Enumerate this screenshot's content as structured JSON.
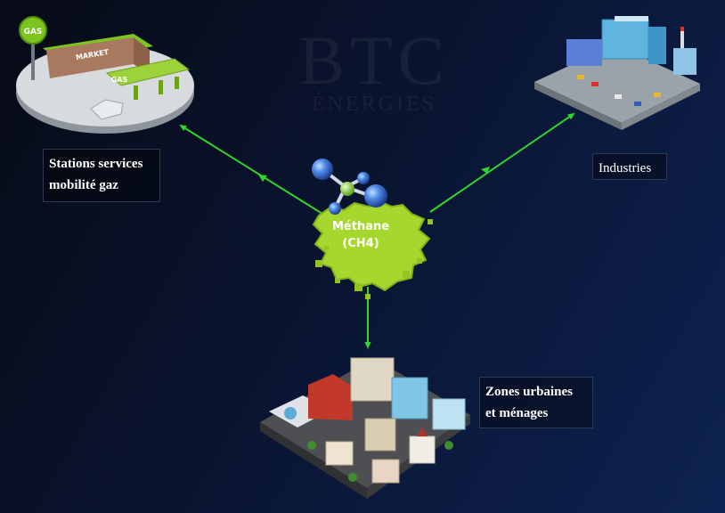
{
  "watermark": {
    "logo": "BTC",
    "sub": "ÉNERGIES"
  },
  "center": {
    "line1": "Méthane",
    "line2": "(CH4)"
  },
  "destinations": {
    "stations": {
      "line1": "Stations services",
      "line2": "mobilité gaz"
    },
    "industries": {
      "label": "Industries"
    },
    "zones": {
      "line1": "Zones urbaines",
      "line2": "et ménages"
    }
  },
  "signage": {
    "gas_pole": "GAS",
    "market": "MARKET",
    "gas_canopy": "GAS"
  },
  "colors": {
    "arrow": "#31d62b",
    "cloud": "#a6d72c",
    "molecule_blue": "#3f78d8",
    "background": "#0a1430"
  }
}
